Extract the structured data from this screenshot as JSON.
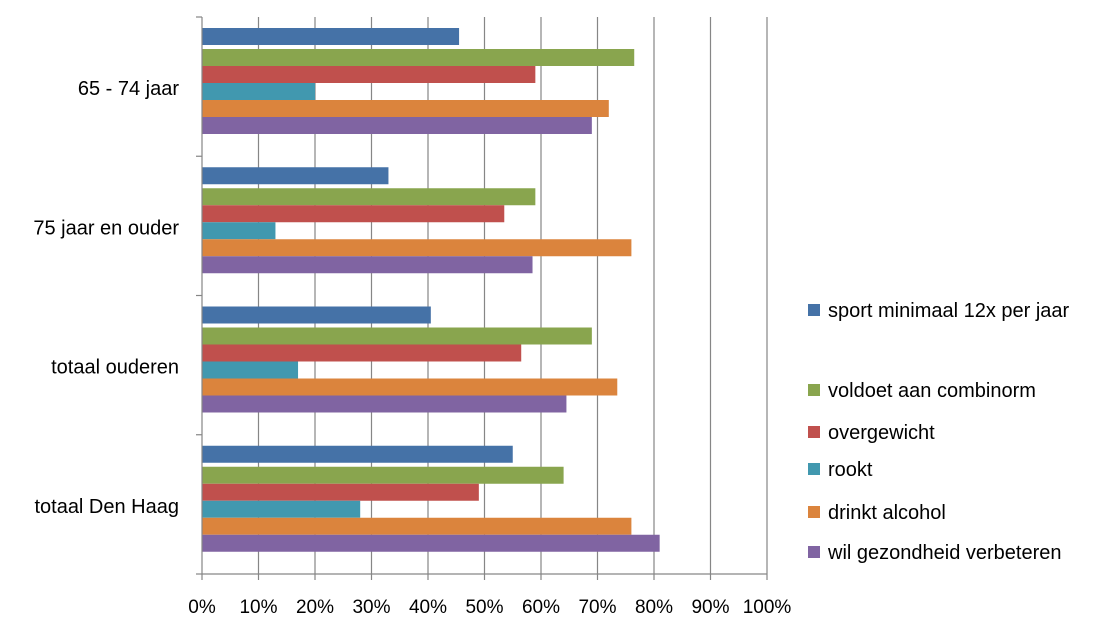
{
  "chart_data": {
    "type": "bar",
    "orientation": "horizontal",
    "categories": [
      "65 - 74 jaar",
      "75 jaar en ouder",
      "totaal ouderen",
      "totaal Den Haag"
    ],
    "series": [
      {
        "name": "sport minimaal 12x per jaar",
        "color": "#4572A7",
        "values": [
          45.5,
          33,
          40.5,
          55
        ]
      },
      {
        "name": "voldoet aan combinorm",
        "color": "#89A54E",
        "values": [
          76.5,
          59,
          69,
          64
        ]
      },
      {
        "name": "overgewicht",
        "color": "#C0504D",
        "values": [
          59,
          53.5,
          56.5,
          49
        ]
      },
      {
        "name": "rookt",
        "color": "#4198AF",
        "values": [
          20,
          13,
          17,
          28
        ]
      },
      {
        "name": "drinkt alcohol",
        "color": "#DB843D",
        "values": [
          72,
          76,
          73.5,
          76
        ]
      },
      {
        "name": "wil gezondheid verbeteren",
        "color": "#8064A2",
        "values": [
          69,
          58.5,
          64.5,
          81
        ]
      }
    ],
    "xlim": [
      0,
      100
    ],
    "x_ticks": [
      "0%",
      "10%",
      "20%",
      "30%",
      "40%",
      "50%",
      "60%",
      "70%",
      "80%",
      "90%",
      "100%"
    ],
    "title": "",
    "xlabel": "",
    "ylabel": "",
    "grid": "vertical",
    "legend_position": "right"
  }
}
